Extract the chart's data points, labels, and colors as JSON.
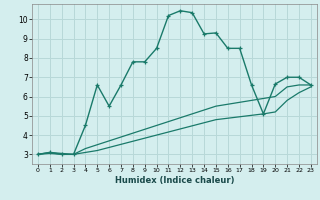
{
  "xlabel": "Humidex (Indice chaleur)",
  "bg_color": "#d4eeee",
  "grid_color": "#b8d8d8",
  "line_color": "#1a7a6a",
  "xlim": [
    -0.5,
    23.5
  ],
  "ylim": [
    2.5,
    10.8
  ],
  "xticks": [
    0,
    1,
    2,
    3,
    4,
    5,
    6,
    7,
    8,
    9,
    10,
    11,
    12,
    13,
    14,
    15,
    16,
    17,
    18,
    19,
    20,
    21,
    22,
    23
  ],
  "yticks": [
    3,
    4,
    5,
    6,
    7,
    8,
    9,
    10
  ],
  "line1_x": [
    0,
    1,
    2,
    3,
    4,
    5,
    6,
    7,
    8,
    9,
    10,
    11,
    12,
    13,
    14,
    15,
    16,
    17,
    18,
    19,
    20,
    21,
    22,
    23
  ],
  "line1_y": [
    3.0,
    3.1,
    3.0,
    3.0,
    4.5,
    6.6,
    5.5,
    6.6,
    7.8,
    7.8,
    8.5,
    10.2,
    10.45,
    10.35,
    9.25,
    9.3,
    8.5,
    8.5,
    6.6,
    5.1,
    6.65,
    7.0,
    7.0,
    6.6
  ],
  "line2_x": [
    0,
    1,
    2,
    3,
    4,
    5,
    10,
    15,
    19,
    20,
    21,
    22,
    23
  ],
  "line2_y": [
    3.0,
    3.1,
    3.05,
    3.0,
    3.3,
    3.5,
    4.5,
    5.5,
    5.9,
    6.0,
    6.5,
    6.6,
    6.6
  ],
  "line3_x": [
    0,
    1,
    2,
    3,
    4,
    5,
    10,
    15,
    19,
    20,
    21,
    22,
    23
  ],
  "line3_y": [
    3.0,
    3.05,
    3.0,
    3.0,
    3.1,
    3.2,
    4.0,
    4.8,
    5.1,
    5.2,
    5.8,
    6.2,
    6.5
  ]
}
